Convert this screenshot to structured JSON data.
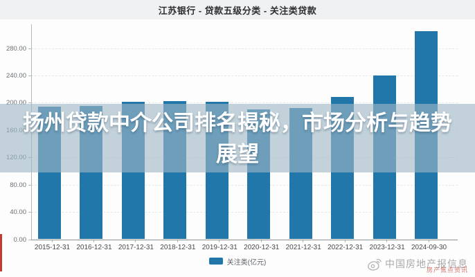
{
  "header": {
    "title": "江苏银行 - 贷款五级分类 - 关注类贷款"
  },
  "overlay_banner": {
    "line1": "扬州贷款中介公司排名揭秘，市场分析与趋势",
    "line2": "展望"
  },
  "chart_data": {
    "type": "bar",
    "title": "江苏银行 - 贷款五级分类 - 关注类贷款",
    "categories": [
      "2015-12-31",
      "2016-12-31",
      "2017-12-31",
      "2018-12-31",
      "2019-12-31",
      "2020-12-31",
      "2021-12-31",
      "2022-12-31",
      "2023-12-31",
      "2024-09-30"
    ],
    "values": [
      194,
      195,
      201,
      202,
      201,
      190,
      192,
      208,
      240,
      305
    ],
    "series_name": "关注类(亿元)",
    "xlabel": "",
    "ylabel": "",
    "ylim": [
      0,
      280
    ],
    "ytick_step": 40,
    "y_tick_labels": [
      "0.00",
      "40.00",
      "80.00",
      "120.00",
      "160.00",
      "200.00",
      "240.00",
      "280.00"
    ],
    "grid": true,
    "legend_position": "bottom",
    "bar_color": "#2277aa"
  },
  "legend": {
    "label": "关注类(亿元)",
    "swatch_color": "#2277aa"
  },
  "watermark": {
    "icon": "weibo-eye-icon",
    "text": "中国房地产报信息",
    "red_text": "房产焦点资讯"
  },
  "colors": {
    "bar": "#2277aa",
    "banner_overlay": "rgba(158,183,196,0.61)",
    "title_strip": "#f0f1f3",
    "accent_red": "#c23b30"
  }
}
